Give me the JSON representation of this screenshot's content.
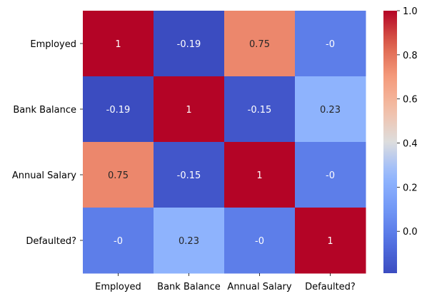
{
  "chart_data": {
    "type": "heatmap",
    "title": "",
    "xlabel": "",
    "ylabel": "",
    "x_categories": [
      "Employed",
      "Bank Balance",
      "Annual Salary",
      "Defaulted?"
    ],
    "y_categories": [
      "Employed",
      "Bank Balance",
      "Annual Salary",
      "Defaulted?"
    ],
    "values": [
      [
        1,
        -0.19,
        0.75,
        0
      ],
      [
        -0.19,
        1,
        -0.15,
        0.23
      ],
      [
        0.75,
        -0.15,
        1,
        0
      ],
      [
        0,
        0.23,
        0,
        1
      ]
    ],
    "annotations": [
      [
        "1",
        "-0.19",
        "0.75",
        "-0"
      ],
      [
        "-0.19",
        "1",
        "-0.15",
        "0.23"
      ],
      [
        "0.75",
        "-0.15",
        "1",
        "-0"
      ],
      [
        "-0",
        "0.23",
        "-0",
        "1"
      ]
    ],
    "colormap": "coolwarm",
    "colorbar": {
      "min": -0.19,
      "max": 1.0,
      "ticks": [
        "0.0",
        "0.2",
        "0.4",
        "0.6",
        "0.8",
        "1.0"
      ]
    },
    "grid": false,
    "legend": "none"
  }
}
